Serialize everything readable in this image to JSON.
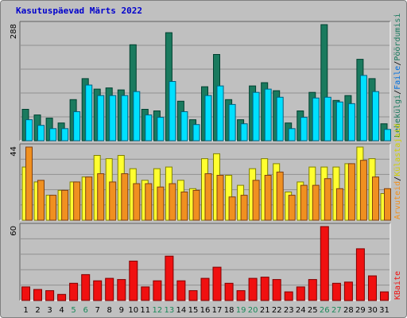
{
  "title": "Kasutuspäevad Märts 2022",
  "colors": {
    "hits": "#00e0ff",
    "hits_border": "#006080",
    "pages": "#1a7a5e",
    "pages_border": "#004030",
    "visits": "#f09020",
    "visits_border": "#804010",
    "hosts": "#ffff30",
    "hosts_border": "#808000",
    "kbytes": "#f01010",
    "kbytes_border": "#800000",
    "weekend_tick": "#1a8a5a",
    "tick": "#000000",
    "panel_bg": "#c0c0c0",
    "grid": "#909090"
  },
  "right_labels": {
    "top_parts": [
      "Pöördumisi",
      "/",
      "Faile",
      "/",
      "Lehekülgi"
    ],
    "middle_parts": [
      "Külastajaid",
      "/",
      "Arvuteid"
    ],
    "bottom": "KBaite"
  },
  "chart_data": [
    {
      "type": "bar",
      "categories": [
        "1",
        "2",
        "3",
        "4",
        "5",
        "6",
        "7",
        "8",
        "9",
        "10",
        "11",
        "12",
        "13",
        "14",
        "15",
        "16",
        "17",
        "18",
        "19",
        "20",
        "21",
        "22",
        "23",
        "24",
        "25",
        "26",
        "27",
        "28",
        "29",
        "30",
        "31"
      ],
      "weekend_days": [
        "5",
        "6",
        "12",
        "13",
        "19",
        "20",
        "26",
        "27"
      ],
      "ymax_label": "288",
      "ylim": [
        0,
        288
      ],
      "series": [
        {
          "name": "Pöördumisi",
          "values": [
            78,
            64,
            56,
            44,
            102,
            154,
            128,
            131,
            126,
            238,
            78,
            74,
            268,
            98,
            52,
            134,
            214,
            102,
            52,
            136,
            144,
            124,
            44,
            74,
            120,
            288,
            100,
            112,
            202,
            154,
            42
          ]
        },
        {
          "name": "Faile",
          "values": [
            52,
            38,
            30,
            30,
            72,
            138,
            112,
            112,
            112,
            122,
            64,
            58,
            147,
            72,
            40,
            112,
            136,
            90,
            42,
            120,
            128,
            108,
            30,
            58,
            106,
            108,
            96,
            92,
            162,
            122,
            28
          ]
        }
      ]
    },
    {
      "type": "bar",
      "categories": [
        "1",
        "2",
        "3",
        "4",
        "5",
        "6",
        "7",
        "8",
        "9",
        "10",
        "11",
        "12",
        "13",
        "14",
        "15",
        "16",
        "17",
        "18",
        "19",
        "20",
        "21",
        "22",
        "23",
        "24",
        "25",
        "26",
        "27",
        "28",
        "29",
        "30",
        "31"
      ],
      "ymax_label": "44",
      "ylim": [
        0,
        44
      ],
      "series": [
        {
          "name": "Külastajaid",
          "values": [
            32,
            23,
            15,
            18,
            23,
            26,
            39,
            37,
            39,
            31,
            24,
            31,
            32,
            24,
            19,
            37,
            40,
            27,
            21,
            31,
            37,
            34,
            17,
            23,
            32,
            32,
            32,
            34,
            44,
            37,
            16
          ]
        },
        {
          "name": "Arvuteid",
          "values": [
            44,
            24,
            15,
            18,
            23,
            26,
            28,
            23,
            28,
            22,
            22,
            20,
            22,
            17,
            18,
            28,
            27,
            14,
            15,
            24,
            27,
            29,
            15,
            21,
            21,
            25,
            19,
            34,
            36,
            26,
            19
          ]
        }
      ]
    },
    {
      "type": "bar",
      "categories": [
        "1",
        "2",
        "3",
        "4",
        "5",
        "6",
        "7",
        "8",
        "9",
        "10",
        "11",
        "12",
        "13",
        "14",
        "15",
        "16",
        "17",
        "18",
        "19",
        "20",
        "21",
        "22",
        "23",
        "24",
        "25",
        "26",
        "27",
        "28",
        "29",
        "30",
        "31"
      ],
      "ymax_label": "60",
      "ylim": [
        0,
        60
      ],
      "series": [
        {
          "name": "KBaite",
          "values": [
            11,
            9,
            8,
            5,
            14,
            21,
            16,
            18,
            17,
            32,
            11,
            16,
            36,
            16,
            8,
            18,
            27,
            14,
            8,
            18,
            19,
            17,
            7,
            11,
            17,
            60,
            14,
            15,
            42,
            20,
            7
          ]
        }
      ]
    }
  ]
}
